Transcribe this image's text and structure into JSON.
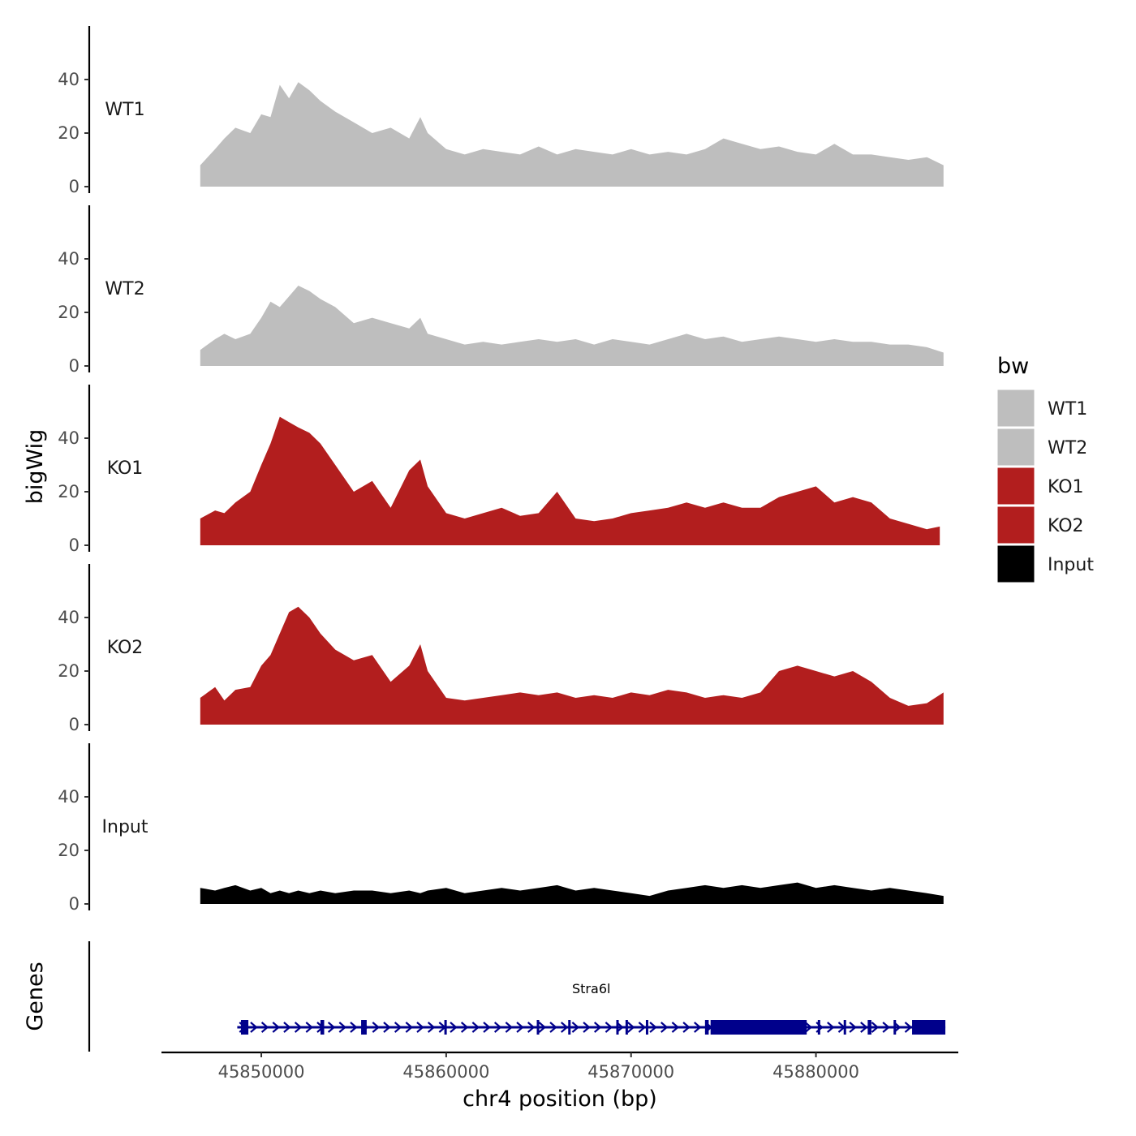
{
  "chart_data": {
    "type": "area",
    "ylabel": "bigWig",
    "xlabel": "chr4 position (bp)",
    "gene_track_label": "Genes",
    "x_range": [
      45844600,
      45887700
    ],
    "x_ticks": [
      45850000,
      45860000,
      45870000,
      45880000
    ],
    "x_tick_labels": [
      "45850000",
      "45860000",
      "45870000",
      "45880000"
    ],
    "y_range": [
      0,
      58
    ],
    "y_ticks": [
      0,
      20,
      40
    ],
    "y_tick_labels": [
      "0",
      "20",
      "40"
    ],
    "tracks": [
      {
        "name": "WT1",
        "color": "#bebebe",
        "x": [
          45846700,
          45847500,
          45848000,
          45848600,
          45849400,
          45850000,
          45850500,
          45851000,
          45851500,
          45852000,
          45852600,
          45853200,
          45854000,
          45855000,
          45856000,
          45857000,
          45858000,
          45858600,
          45859000,
          45860000,
          45861000,
          45862000,
          45863000,
          45864000,
          45865000,
          45866000,
          45867000,
          45868000,
          45869000,
          45870000,
          45871000,
          45872000,
          45873000,
          45874000,
          45875000,
          45876000,
          45877000,
          45878000,
          45879000,
          45880000,
          45881000,
          45882000,
          45883000,
          45884000,
          45885000,
          45886000,
          45886900
        ],
        "y": [
          8,
          14,
          18,
          22,
          20,
          27,
          26,
          38,
          33,
          39,
          36,
          32,
          28,
          24,
          20,
          22,
          18,
          26,
          20,
          14,
          12,
          14,
          13,
          12,
          15,
          12,
          14,
          13,
          12,
          14,
          12,
          13,
          12,
          14,
          18,
          16,
          14,
          15,
          13,
          12,
          16,
          12,
          12,
          11,
          10,
          11,
          8
        ]
      },
      {
        "name": "WT2",
        "color": "#bebebe",
        "x": [
          45846700,
          45847500,
          45848000,
          45848600,
          45849400,
          45850000,
          45850500,
          45851000,
          45851500,
          45852000,
          45852600,
          45853200,
          45854000,
          45855000,
          45856000,
          45857000,
          45858000,
          45858600,
          45859000,
          45860000,
          45861000,
          45862000,
          45863000,
          45864000,
          45865000,
          45866000,
          45867000,
          45868000,
          45869000,
          45870000,
          45871000,
          45872000,
          45873000,
          45874000,
          45875000,
          45876000,
          45877000,
          45878000,
          45879000,
          45880000,
          45881000,
          45882000,
          45883000,
          45884000,
          45885000,
          45886000,
          45886900
        ],
        "y": [
          6,
          10,
          12,
          10,
          12,
          18,
          24,
          22,
          26,
          30,
          28,
          25,
          22,
          16,
          18,
          16,
          14,
          18,
          12,
          10,
          8,
          9,
          8,
          9,
          10,
          9,
          10,
          8,
          10,
          9,
          8,
          10,
          12,
          10,
          11,
          9,
          10,
          11,
          10,
          9,
          10,
          9,
          9,
          8,
          8,
          7,
          5
        ]
      },
      {
        "name": "KO1",
        "color": "#b21e1e",
        "x": [
          45846700,
          45847500,
          45848000,
          45848600,
          45849400,
          45850000,
          45850500,
          45851000,
          45851500,
          45852000,
          45852600,
          45853200,
          45854000,
          45855000,
          45856000,
          45857000,
          45858000,
          45858600,
          45859000,
          45860000,
          45861000,
          45862000,
          45863000,
          45864000,
          45865000,
          45866000,
          45867000,
          45868000,
          45869000,
          45870000,
          45871000,
          45872000,
          45873000,
          45874000,
          45875000,
          45876000,
          45877000,
          45878000,
          45879000,
          45880000,
          45881000,
          45882000,
          45883000,
          45884000,
          45885000,
          45886000,
          45886700
        ],
        "y": [
          10,
          13,
          12,
          16,
          20,
          30,
          38,
          48,
          46,
          44,
          42,
          38,
          30,
          20,
          24,
          14,
          28,
          32,
          22,
          12,
          10,
          12,
          14,
          11,
          12,
          20,
          10,
          9,
          10,
          12,
          13,
          14,
          16,
          14,
          16,
          14,
          14,
          18,
          20,
          22,
          16,
          18,
          16,
          10,
          8,
          6,
          7
        ]
      },
      {
        "name": "KO2",
        "color": "#b21e1e",
        "x": [
          45846700,
          45847500,
          45848000,
          45848600,
          45849400,
          45850000,
          45850500,
          45851000,
          45851500,
          45852000,
          45852600,
          45853200,
          45854000,
          45855000,
          45856000,
          45857000,
          45858000,
          45858600,
          45859000,
          45860000,
          45861000,
          45862000,
          45863000,
          45864000,
          45865000,
          45866000,
          45867000,
          45868000,
          45869000,
          45870000,
          45871000,
          45872000,
          45873000,
          45874000,
          45875000,
          45876000,
          45877000,
          45878000,
          45879000,
          45880000,
          45881000,
          45882000,
          45883000,
          45884000,
          45885000,
          45886000,
          45886900
        ],
        "y": [
          10,
          14,
          9,
          13,
          14,
          22,
          26,
          34,
          42,
          44,
          40,
          34,
          28,
          24,
          26,
          16,
          22,
          30,
          20,
          10,
          9,
          10,
          11,
          12,
          11,
          12,
          10,
          11,
          10,
          12,
          11,
          13,
          12,
          10,
          11,
          10,
          12,
          20,
          22,
          20,
          18,
          20,
          16,
          10,
          7,
          8,
          12
        ]
      },
      {
        "name": "Input",
        "color": "#000000",
        "x": [
          45846700,
          45847500,
          45848000,
          45848600,
          45849400,
          45850000,
          45850500,
          45851000,
          45851500,
          45852000,
          45852600,
          45853200,
          45854000,
          45855000,
          45856000,
          45857000,
          45858000,
          45858600,
          45859000,
          45860000,
          45861000,
          45862000,
          45863000,
          45864000,
          45865000,
          45866000,
          45867000,
          45868000,
          45869000,
          45870000,
          45871000,
          45872000,
          45873000,
          45874000,
          45875000,
          45876000,
          45877000,
          45878000,
          45879000,
          45880000,
          45881000,
          45882000,
          45883000,
          45884000,
          45885000,
          45886000,
          45886900
        ],
        "y": [
          6,
          5,
          6,
          7,
          5,
          6,
          4,
          5,
          4,
          5,
          4,
          5,
          4,
          5,
          5,
          4,
          5,
          4,
          5,
          6,
          4,
          5,
          6,
          5,
          6,
          7,
          5,
          6,
          5,
          4,
          3,
          5,
          6,
          7,
          6,
          7,
          6,
          7,
          8,
          6,
          7,
          6,
          5,
          6,
          5,
          4,
          3
        ]
      }
    ],
    "legend": {
      "title": "bw",
      "position": "right",
      "entries": [
        {
          "label": "WT1",
          "color": "#bebebe"
        },
        {
          "label": "WT2",
          "color": "#bebebe"
        },
        {
          "label": "KO1",
          "color": "#b21e1e"
        },
        {
          "label": "KO2",
          "color": "#b21e1e"
        },
        {
          "label": "Input",
          "color": "#000000"
        }
      ]
    },
    "gene": {
      "name": "Stra6l",
      "color": "#00008b",
      "strand": "+",
      "start": 45848700,
      "end": 45887000,
      "exons": [
        [
          45848900,
          45849300
        ],
        [
          45853200,
          45853400
        ],
        [
          45855400,
          45855700
        ],
        [
          45859900,
          45860000
        ],
        [
          45864900,
          45865000
        ],
        [
          45866600,
          45866700
        ],
        [
          45869200,
          45869300
        ],
        [
          45869700,
          45869800
        ],
        [
          45870800,
          45870900
        ],
        [
          45874000,
          45874200
        ],
        [
          45874300,
          45879500
        ],
        [
          45880100,
          45880200
        ],
        [
          45881500,
          45881600
        ],
        [
          45882800,
          45883000
        ],
        [
          45884200,
          45884300
        ],
        [
          45885200,
          45887000
        ]
      ]
    }
  }
}
